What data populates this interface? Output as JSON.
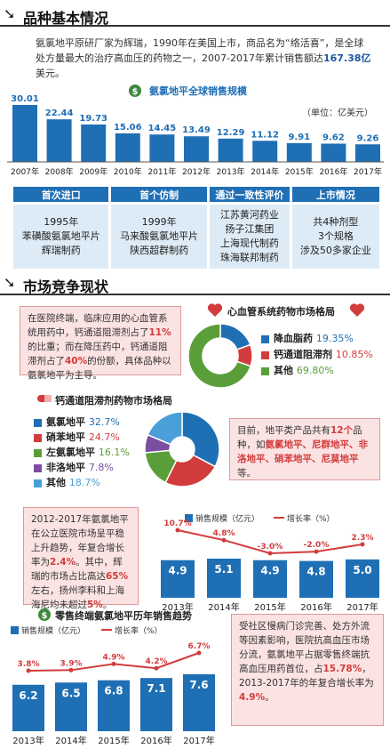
{
  "section1": {
    "title": "品种基本情况"
  },
  "intro": {
    "text_before": "氨氯地平原研厂家为辉瑞，1990年在美国上市，商品名为“络活喜”，是全球处方量最大的治疗高血压的药物之一，2007-2017年累计销售额达",
    "highlight": "167.38亿",
    "text_after": "美元。"
  },
  "global_sales": {
    "title": "氨氯地平全球销售规模",
    "unit": "（单位：亿美元）",
    "icon": "money-bag-icon"
  },
  "basics_table": {
    "headers": [
      "首次进口",
      "首个仿制",
      "通过一致性评价",
      "上市情况"
    ],
    "cells": [
      [
        "1995年",
        "苯磺酸氨氯地平片",
        "辉瑞制药"
      ],
      [
        "1999年",
        "马来酸氨氯地平片",
        "陕西超群制药"
      ],
      [
        "江苏黄河药业",
        "扬子江集团",
        "上海现代制药",
        "珠海联邦制药"
      ],
      [
        "共4种剂型",
        "3个规格",
        "涉及50多家企业"
      ]
    ]
  },
  "section2": {
    "title": "市场竞争现状"
  },
  "note1": {
    "parts": [
      "在医院终端，临床应用的心血管系统用药中，钙通道阻滞剂占了",
      "11%",
      "的比重；而在降压药中，钙通道阻滞剂占了",
      "40%",
      "的份额，具体品种以氨氯地平为主导。"
    ]
  },
  "cardio_pie": {
    "title": "心血管系统药物市场格局",
    "icon": "heart-icon"
  },
  "ccb_pie": {
    "title": "钙通道阻滞剂药物市场格局",
    "icon": "pill-icon"
  },
  "note2": {
    "parts": [
      "目前，地平类产品共有",
      "12个",
      "品种，如",
      "氨氯地平、尼群地平、非洛地平、硝苯地平、尼莫地平",
      "等。"
    ]
  },
  "note3": {
    "parts": [
      "2012-2017年氨氯地平在公立医院市场呈平稳上升趋势，年复合增长率为",
      "2.4%",
      "。其中，辉瑞的市场占比高达",
      "65%",
      "左右，扬州李料和上海海尼均未超过",
      "5%",
      "。"
    ]
  },
  "hospital_chart": {
    "legend_sales": "销售规模（亿元）",
    "legend_growth": "增长率（%）"
  },
  "retail_chart": {
    "title": "零售终端氨氯地平历年销售趋势",
    "icon": "money-bag-icon",
    "legend_sales": "销售规模（亿元）",
    "legend_growth": "增长率（%）"
  },
  "note4": {
    "parts": [
      "受社区慢病门诊完善、处方外流等因素影响，医院抗高血压市场分流，氨氯地平占据零售终端抗高血压用药首位，占",
      "15.78%",
      "，2013-2017年的年复合增长率为",
      "4.9%",
      "。"
    ]
  },
  "colors": {
    "blue": "#1f6fb5",
    "red": "#d23c3c",
    "green": "#5a9e3a",
    "purple": "#7a4fa0",
    "light_blue": "#4a9fd8",
    "pink_bg": "#fbe3e3"
  },
  "chart_data": [
    {
      "type": "bar",
      "title": "氨氯地平全球销售规模",
      "unit": "（单位：亿美元）",
      "categories": [
        "2007年",
        "2008年",
        "2009年",
        "2010年",
        "2011年",
        "2012年",
        "2013年",
        "2014年",
        "2015年",
        "2016年",
        "2017年"
      ],
      "values": [
        30.01,
        22.44,
        19.73,
        15.06,
        14.45,
        13.49,
        12.29,
        11.12,
        9.91,
        9.62,
        9.26
      ],
      "value_labels": [
        "30.01",
        "22.44",
        "19.73",
        "15.06",
        "14.45",
        "13.49",
        "12.29",
        "11.12",
        "9.91",
        "9.62",
        "9.26"
      ]
    },
    {
      "type": "pie",
      "title": "心血管系统药物市场格局",
      "labels": [
        "降血脂药",
        "钙通道阻滞剂",
        "其他"
      ],
      "values": [
        19.35,
        10.85,
        69.8
      ],
      "value_labels": [
        "19.35%",
        "10.85%",
        "69.80%"
      ],
      "colors": [
        "#1f6fb5",
        "#d23c3c",
        "#5a9e3a"
      ]
    },
    {
      "type": "pie",
      "title": "钙通道阻滞剂药物市场格局",
      "labels": [
        "氨氯地平",
        "硝苯地平",
        "左氨氯地平",
        "非洛地平",
        "其他"
      ],
      "values": [
        32.7,
        24.7,
        16.1,
        7.8,
        18.7
      ],
      "value_labels": [
        "32.7%",
        "24.7%",
        "16.1%",
        "7.8%",
        "18.7%"
      ],
      "colors": [
        "#1f6fb5",
        "#d23c3c",
        "#5a9e3a",
        "#7a4fa0",
        "#4a9fd8"
      ]
    },
    {
      "type": "bar",
      "categories": [
        "2013年",
        "2014年",
        "2015年",
        "2016年",
        "2017年"
      ],
      "series": [
        {
          "name": "销售规模（亿元）",
          "values": [
            4.9,
            5.1,
            4.9,
            4.8,
            5.0
          ],
          "value_labels": [
            "4.9",
            "5.1",
            "4.9",
            "4.8",
            "5.0"
          ]
        },
        {
          "name": "增长率（%）",
          "type": "line",
          "values": [
            10.7,
            4.8,
            -3.0,
            -2.0,
            2.3
          ],
          "value_labels": [
            "10.7%",
            "4.8%",
            "-3.0%",
            "-2.0%",
            "2.3%"
          ]
        }
      ]
    },
    {
      "type": "bar",
      "title": "零售终端氨氯地平历年销售趋势",
      "categories": [
        "2013年",
        "2014年",
        "2015年",
        "2016年",
        "2017年"
      ],
      "series": [
        {
          "name": "销售规模（亿元）",
          "values": [
            6.2,
            6.5,
            6.8,
            7.1,
            7.6
          ],
          "value_labels": [
            "6.2",
            "6.5",
            "6.8",
            "7.1",
            "7.6"
          ]
        },
        {
          "name": "增长率（%）",
          "type": "line",
          "values": [
            3.8,
            3.9,
            4.9,
            4.2,
            6.7
          ],
          "value_labels": [
            "3.8%",
            "3.9%",
            "4.9%",
            "4.2%",
            "6.7%"
          ]
        }
      ]
    }
  ]
}
